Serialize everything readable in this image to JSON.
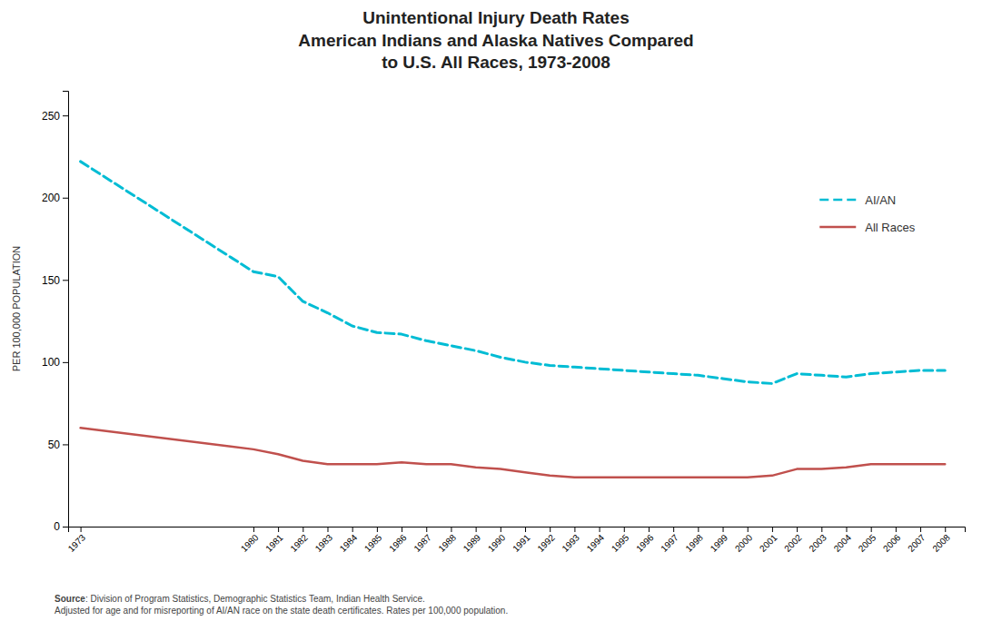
{
  "chart_data": {
    "type": "line",
    "title": "Unintentional Injury Death Rates\nAmerican Indians and Alaska Natives Compared\nto U.S. All Races, 1973-2008",
    "y_label": "PER 100,000 POPULATION",
    "annotations": [
      "Source",
      ": Division of Program Statistics, Demographic Statistics Team, Indian Health Service.\nAdjusted for age and for misreporting of AI/AN race on the state death certificates.  Rates per 100,000 population."
    ],
    "x": [
      1973,
      1980,
      1981,
      1982,
      1983,
      1984,
      1985,
      1986,
      1987,
      1988,
      1989,
      1990,
      1991,
      1992,
      1993,
      1994,
      1995,
      1996,
      1997,
      1998,
      1999,
      2000,
      2001,
      2002,
      2003,
      2004,
      2005,
      2006,
      2007,
      2008
    ],
    "series": [
      {
        "name": "AI/AN",
        "color": "#00bcd4",
        "line_style": "dashed",
        "values": [
          222,
          155,
          152,
          137,
          130,
          122,
          118,
          117,
          113,
          110,
          107,
          103,
          100,
          98,
          97,
          96,
          95,
          94,
          93,
          92,
          90,
          88,
          87,
          93,
          92,
          91,
          93,
          94,
          95,
          95
        ]
      },
      {
        "name": "All Races",
        "color": "#c0504d",
        "line_style": "solid",
        "values": [
          60,
          47,
          44,
          40,
          38,
          38,
          38,
          39,
          38,
          38,
          36,
          35,
          33,
          31,
          30,
          30,
          30,
          30,
          30,
          30,
          30,
          30,
          31,
          35,
          35,
          36,
          38,
          38,
          38,
          38
        ]
      }
    ],
    "xlim": [
      1972.5,
      2008.8
    ],
    "xticks": [
      1973,
      1980,
      1981,
      1982,
      1983,
      1984,
      1985,
      1986,
      1987,
      1988,
      1989,
      1990,
      1991,
      1992,
      1993,
      1994,
      1995,
      1996,
      1997,
      1998,
      1999,
      2000,
      2001,
      2002,
      2003,
      2004,
      2005,
      2006,
      2007,
      2008
    ],
    "ylim": [
      0,
      265
    ],
    "yticks": [
      0,
      50,
      100,
      150,
      200,
      250
    ],
    "grid": false,
    "legend": "upper right"
  }
}
